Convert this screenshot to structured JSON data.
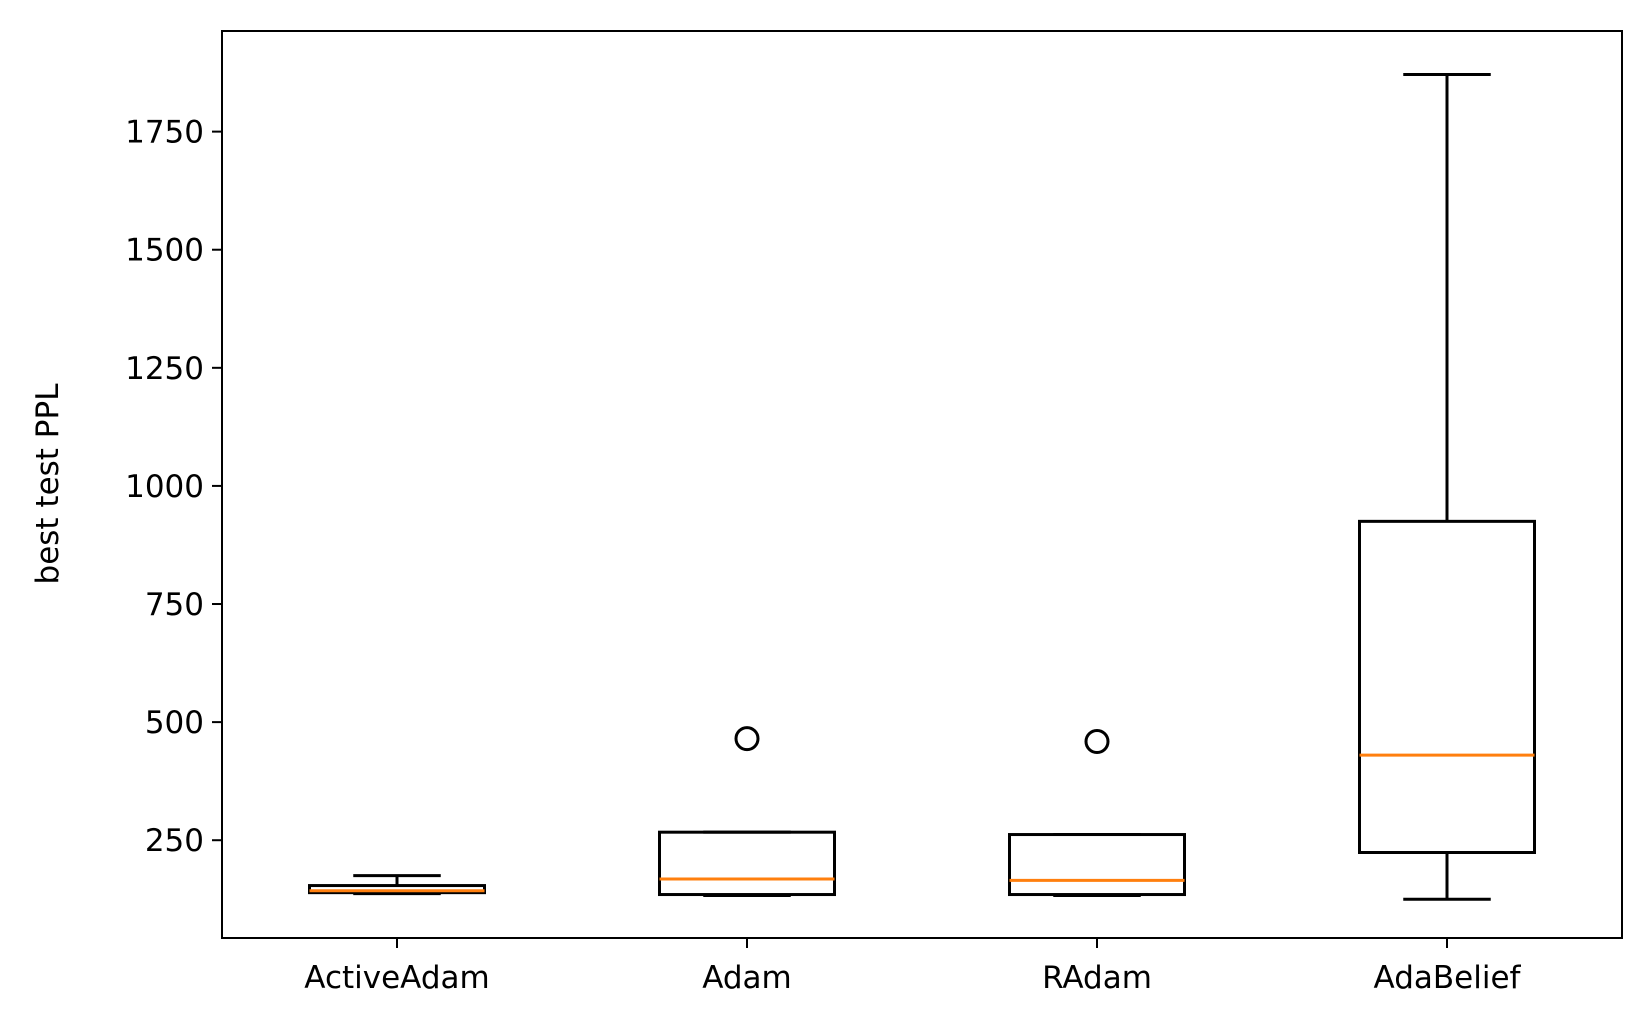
{
  "chart_data": {
    "type": "box",
    "title": "",
    "xlabel": "",
    "ylabel": "best test PPL",
    "ylim": [
      43,
      1963
    ],
    "yticks": [
      250,
      500,
      750,
      1000,
      1250,
      1500,
      1750
    ],
    "grid": false,
    "categories": [
      "ActiveAdam",
      "Adam",
      "RAdam",
      "AdaBelief"
    ],
    "boxes": [
      {
        "name": "ActiveAdam",
        "whisker_low": 137,
        "q1": 139,
        "median": 143,
        "q3": 154,
        "whisker_high": 175,
        "outliers": []
      },
      {
        "name": "Adam",
        "whisker_low": 133,
        "q1": 135,
        "median": 168,
        "q3": 267,
        "whisker_high": 267,
        "outliers": [
          465
        ]
      },
      {
        "name": "RAdam",
        "whisker_low": 133,
        "q1": 135,
        "median": 165,
        "q3": 262,
        "whisker_high": 262,
        "outliers": [
          459
        ]
      },
      {
        "name": "AdaBelief",
        "whisker_low": 125,
        "q1": 224,
        "median": 430,
        "q3": 925,
        "whisker_high": 1871,
        "outliers": []
      }
    ],
    "colors": {
      "box": "#000000",
      "median": "#ff7f0e"
    }
  }
}
